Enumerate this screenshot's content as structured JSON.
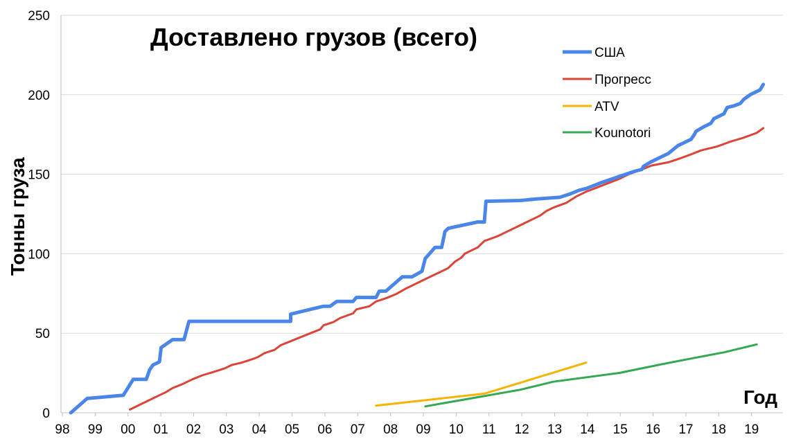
{
  "chart_data": {
    "type": "line",
    "title": "Доставлено грузов (всего)",
    "xlabel": "Год",
    "ylabel": "Тонны груза",
    "xlim": [
      1998,
      2020
    ],
    "ylim": [
      0,
      250
    ],
    "x_ticks": [
      {
        "value": 1998,
        "label": "98"
      },
      {
        "value": 1999,
        "label": "99"
      },
      {
        "value": 2000,
        "label": "00"
      },
      {
        "value": 2001,
        "label": "01"
      },
      {
        "value": 2002,
        "label": "02"
      },
      {
        "value": 2003,
        "label": "03"
      },
      {
        "value": 2004,
        "label": "04"
      },
      {
        "value": 2005,
        "label": "05"
      },
      {
        "value": 2006,
        "label": "06"
      },
      {
        "value": 2007,
        "label": "07"
      },
      {
        "value": 2008,
        "label": "08"
      },
      {
        "value": 2009,
        "label": "09"
      },
      {
        "value": 2010,
        "label": "10"
      },
      {
        "value": 2011,
        "label": "11"
      },
      {
        "value": 2012,
        "label": "12"
      },
      {
        "value": 2013,
        "label": "13"
      },
      {
        "value": 2014,
        "label": "14"
      },
      {
        "value": 2015,
        "label": "15"
      },
      {
        "value": 2016,
        "label": "16"
      },
      {
        "value": 2017,
        "label": "17"
      },
      {
        "value": 2018,
        "label": "18"
      },
      {
        "value": 2019,
        "label": "19"
      }
    ],
    "y_ticks": [
      0,
      50,
      100,
      150,
      200,
      250
    ],
    "grid": "horizontal",
    "legend_position": "top-right",
    "series": [
      {
        "name": "США",
        "color": "#4A86E8",
        "points": [
          [
            1998.3,
            0
          ],
          [
            1998.8,
            9
          ],
          [
            1999.9,
            11
          ],
          [
            2000.2,
            21
          ],
          [
            2000.6,
            21
          ],
          [
            2000.7,
            27
          ],
          [
            2000.8,
            30
          ],
          [
            2001.0,
            32
          ],
          [
            2001.05,
            41
          ],
          [
            2001.4,
            46
          ],
          [
            2001.75,
            46
          ],
          [
            2001.9,
            57.5
          ],
          [
            2005.0,
            57.5
          ],
          [
            2005.0,
            62
          ],
          [
            2006.0,
            67
          ],
          [
            2006.2,
            67
          ],
          [
            2006.4,
            70
          ],
          [
            2006.9,
            70
          ],
          [
            2007.0,
            72.5
          ],
          [
            2007.6,
            72.5
          ],
          [
            2007.7,
            76.5
          ],
          [
            2007.9,
            76.5
          ],
          [
            2008.4,
            85.5
          ],
          [
            2008.7,
            85.5
          ],
          [
            2009.0,
            89
          ],
          [
            2009.1,
            97
          ],
          [
            2009.4,
            104
          ],
          [
            2009.6,
            104
          ],
          [
            2009.7,
            114
          ],
          [
            2009.8,
            116
          ],
          [
            2010.7,
            120
          ],
          [
            2010.9,
            120
          ],
          [
            2010.95,
            133
          ],
          [
            2012.0,
            133.5
          ],
          [
            2012.5,
            134.5
          ],
          [
            2013.2,
            135.5
          ],
          [
            2013.5,
            137.5
          ],
          [
            2013.8,
            140
          ],
          [
            2014.0,
            141
          ],
          [
            2014.5,
            145
          ],
          [
            2015.0,
            148.5
          ],
          [
            2015.5,
            152
          ],
          [
            2015.7,
            153
          ],
          [
            2015.75,
            155
          ],
          [
            2016.0,
            158
          ],
          [
            2016.5,
            163
          ],
          [
            2016.8,
            168
          ],
          [
            2017.0,
            170
          ],
          [
            2017.2,
            172
          ],
          [
            2017.3,
            175
          ],
          [
            2017.35,
            177
          ],
          [
            2017.6,
            180
          ],
          [
            2017.8,
            182
          ],
          [
            2017.9,
            185
          ],
          [
            2018.2,
            188
          ],
          [
            2018.3,
            192
          ],
          [
            2018.5,
            193
          ],
          [
            2018.7,
            194.5
          ],
          [
            2018.8,
            197
          ],
          [
            2019.0,
            200
          ],
          [
            2019.3,
            203
          ],
          [
            2019.4,
            206.5
          ]
        ]
      },
      {
        "name": "Прогресс",
        "color": "#DB4437",
        "points": [
          [
            2000.1,
            2
          ],
          [
            2000.6,
            7
          ],
          [
            2001.0,
            11
          ],
          [
            2001.2,
            13
          ],
          [
            2001.4,
            15.5
          ],
          [
            2001.7,
            18
          ],
          [
            2002.0,
            21
          ],
          [
            2002.3,
            23.5
          ],
          [
            2002.7,
            26
          ],
          [
            2003.0,
            28
          ],
          [
            2003.2,
            30
          ],
          [
            2003.5,
            31.5
          ],
          [
            2003.8,
            33.5
          ],
          [
            2004.0,
            35
          ],
          [
            2004.2,
            37.5
          ],
          [
            2004.5,
            39.5
          ],
          [
            2004.7,
            42.5
          ],
          [
            2005.0,
            45
          ],
          [
            2005.3,
            47.5
          ],
          [
            2005.6,
            50
          ],
          [
            2005.9,
            52.5
          ],
          [
            2006.0,
            55
          ],
          [
            2006.3,
            57
          ],
          [
            2006.5,
            59.5
          ],
          [
            2006.9,
            62.5
          ],
          [
            2007.0,
            65
          ],
          [
            2007.4,
            67
          ],
          [
            2007.6,
            70
          ],
          [
            2007.9,
            72
          ],
          [
            2008.2,
            74.5
          ],
          [
            2008.5,
            78
          ],
          [
            2008.7,
            80
          ],
          [
            2009.0,
            83
          ],
          [
            2009.3,
            86
          ],
          [
            2009.5,
            88
          ],
          [
            2009.8,
            91
          ],
          [
            2010.0,
            95
          ],
          [
            2010.2,
            97.5
          ],
          [
            2010.3,
            100
          ],
          [
            2010.7,
            104
          ],
          [
            2010.9,
            108
          ],
          [
            2011.3,
            111
          ],
          [
            2011.6,
            114
          ],
          [
            2012.0,
            118
          ],
          [
            2012.3,
            121
          ],
          [
            2012.6,
            124
          ],
          [
            2012.8,
            127
          ],
          [
            2013.0,
            129
          ],
          [
            2013.4,
            132
          ],
          [
            2013.7,
            136
          ],
          [
            2014.0,
            139
          ],
          [
            2014.5,
            143
          ],
          [
            2015.0,
            147
          ],
          [
            2015.3,
            150
          ],
          [
            2015.7,
            153
          ],
          [
            2016.0,
            155.5
          ],
          [
            2016.5,
            157.5
          ],
          [
            2016.8,
            159.5
          ],
          [
            2017.2,
            162.5
          ],
          [
            2017.5,
            165
          ],
          [
            2018.0,
            167.5
          ],
          [
            2018.4,
            170.5
          ],
          [
            2018.8,
            173
          ],
          [
            2019.2,
            176
          ],
          [
            2019.4,
            179
          ]
        ]
      },
      {
        "name": "ATV",
        "color": "#F4B400",
        "points": [
          [
            2007.6,
            4.5
          ],
          [
            2010.9,
            12
          ],
          [
            2014.0,
            31.5
          ]
        ]
      },
      {
        "name": "Kounotori",
        "color": "#34A853",
        "points": [
          [
            2009.1,
            4
          ],
          [
            2010.9,
            10.5
          ],
          [
            2012.0,
            14.5
          ],
          [
            2013.0,
            19.5
          ],
          [
            2015.0,
            25
          ],
          [
            2016.3,
            30.5
          ],
          [
            2017.3,
            34.5
          ],
          [
            2018.2,
            38
          ],
          [
            2019.2,
            43
          ]
        ]
      }
    ]
  }
}
